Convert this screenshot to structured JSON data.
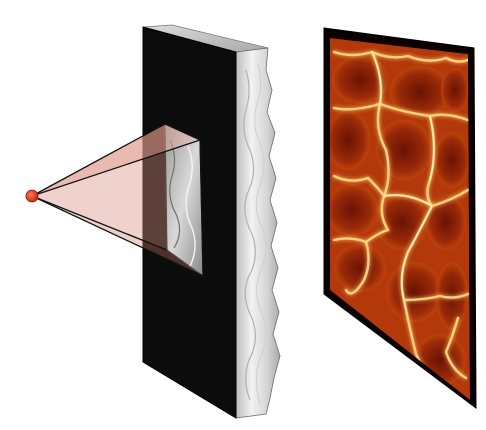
{
  "scene": {
    "light_source": {
      "color": "#d83a1e"
    },
    "slab": {
      "front_color": "#0c0c0c",
      "edge_color": "#e8e8e8"
    },
    "caustic_screen": {
      "frame_color": "#0a0000",
      "glow_color": "#ff7a10",
      "pattern": "caustic-network"
    }
  }
}
